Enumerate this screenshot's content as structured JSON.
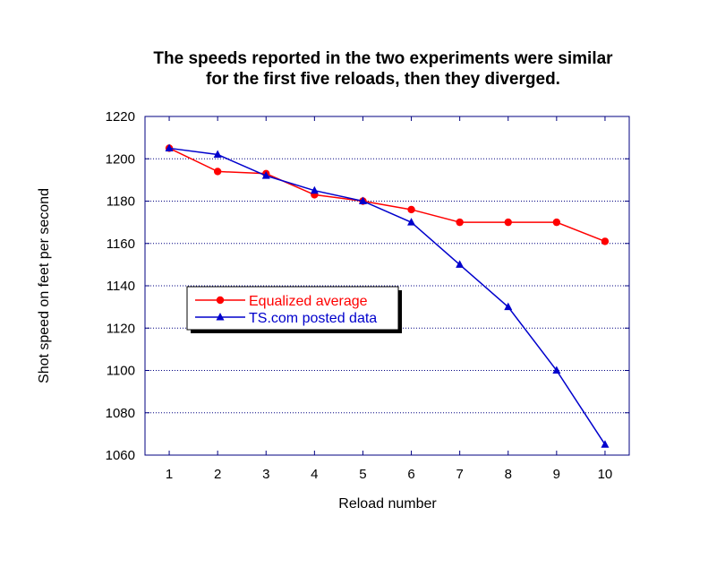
{
  "chart_data": {
    "type": "line",
    "title_lines": [
      "The speeds reported in the two experiments were similar",
      "for the first five reloads, then they diverged."
    ],
    "xlabel": "Reload number",
    "ylabel": "Shot speed on feet per second",
    "x": [
      1,
      2,
      3,
      4,
      5,
      6,
      7,
      8,
      9,
      10
    ],
    "x_tick_labels": [
      "1",
      "2",
      "3",
      "4",
      "5",
      "6",
      "7",
      "8",
      "9",
      "10"
    ],
    "xlim": [
      0.5,
      10.5
    ],
    "ylim": [
      1060,
      1220
    ],
    "y_ticks": [
      1060,
      1080,
      1100,
      1120,
      1140,
      1160,
      1180,
      1200,
      1220
    ],
    "y_tick_labels": [
      "1060",
      "1080",
      "1100",
      "1120",
      "1140",
      "1160",
      "1180",
      "1200",
      "1220"
    ],
    "grid": "horizontal-dotted",
    "legend_position": "center-left",
    "series": [
      {
        "name": "Equalized average",
        "color": "#ff0000",
        "marker": "circle",
        "values": [
          1205,
          1194,
          1193,
          1183,
          1180,
          1176,
          1170,
          1170,
          1170,
          1161
        ]
      },
      {
        "name": "TS.com posted data",
        "color": "#0000cc",
        "marker": "triangle",
        "values": [
          1205,
          1202,
          1192,
          1185,
          1180,
          1170,
          1150,
          1130,
          1100,
          1065
        ]
      }
    ]
  }
}
